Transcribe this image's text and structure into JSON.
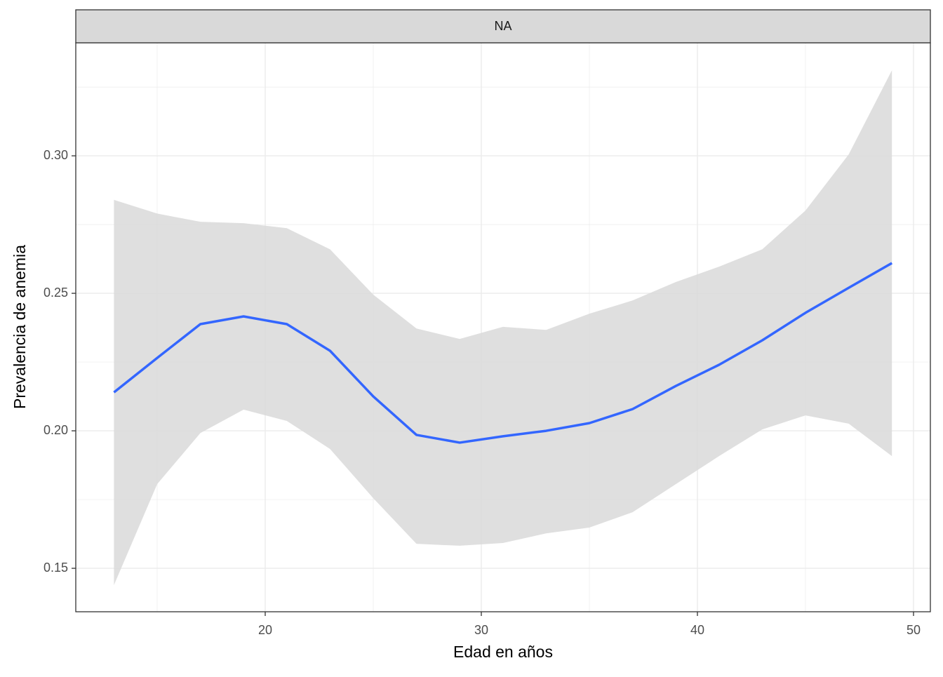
{
  "chart_data": {
    "type": "line",
    "strip": "NA",
    "x_label": "Edad en años",
    "y_label": "Prevalencia de anemia",
    "x": [
      13,
      15,
      17,
      19,
      21,
      23,
      25,
      27,
      29,
      31,
      33,
      35,
      37,
      39,
      41,
      43,
      45,
      47,
      49
    ],
    "values": [
      0.214,
      0.2265,
      0.2388,
      0.2416,
      0.2388,
      0.2291,
      0.2125,
      0.1985,
      0.1957,
      0.198,
      0.2,
      0.2028,
      0.2079,
      0.2163,
      0.224,
      0.2329,
      0.2429,
      0.252,
      0.261
    ],
    "lower": [
      0.1439,
      0.1806,
      0.1992,
      0.2077,
      0.2036,
      0.1934,
      0.1755,
      0.1589,
      0.1582,
      0.1592,
      0.1627,
      0.1648,
      0.1704,
      0.1806,
      0.1908,
      0.2005,
      0.2056,
      0.2026,
      0.1908
    ],
    "upper": [
      0.284,
      0.279,
      0.276,
      0.2755,
      0.2737,
      0.266,
      0.2495,
      0.2372,
      0.2334,
      0.2378,
      0.2367,
      0.2426,
      0.2474,
      0.2541,
      0.2597,
      0.266,
      0.2801,
      0.3005,
      0.3311
    ],
    "color": "#3366ff",
    "band_color": "#d9d9d9",
    "xlim": [
      11.234,
      50.78
    ],
    "ylim": [
      0.1342,
      0.3411
    ],
    "xticks": [
      20,
      30,
      40,
      50
    ],
    "yticks": [
      {
        "value": 0.15,
        "label": "0.15"
      },
      {
        "value": 0.2,
        "label": "0.20"
      },
      {
        "value": 0.25,
        "label": "0.25"
      },
      {
        "value": 0.3,
        "label": "0.30"
      }
    ],
    "xminor_ticks": [
      15,
      25,
      35,
      45
    ],
    "yminor_ticks": [
      0.175,
      0.225,
      0.275,
      0.325
    ],
    "grid": true
  }
}
